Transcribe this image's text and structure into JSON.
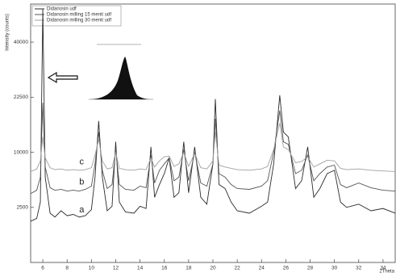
{
  "chart_data": {
    "type": "line",
    "x_label": "2Theta",
    "y_label": "Intensity (counts)",
    "y_scale": "sqrt",
    "xlim": [
      5,
      35
    ],
    "ylim": [
      0,
      55000
    ],
    "xticks": [
      6,
      8,
      10,
      12,
      14,
      16,
      18,
      20,
      22,
      24,
      26,
      28,
      30,
      32,
      34
    ],
    "yticks": [
      2500,
      10000,
      22500,
      40000
    ],
    "legend": "upper-left",
    "x": [
      5,
      5.5,
      5.8,
      6,
      6.2,
      6.6,
      7,
      7.5,
      8,
      8.5,
      9,
      9.5,
      10,
      10.3,
      10.6,
      10.9,
      11.3,
      11.7,
      12,
      12.3,
      12.8,
      13.5,
      14,
      14.5,
      14.9,
      15.2,
      15.6,
      16,
      16.4,
      16.8,
      17.2,
      17.6,
      18,
      18.5,
      19,
      19.5,
      20,
      20.2,
      20.5,
      21,
      21.5,
      22,
      23,
      24,
      24.5,
      25,
      25.5,
      25.8,
      26.2,
      26.8,
      27.3,
      27.8,
      28.3,
      28.8,
      29.4,
      30,
      30.5,
      31,
      32,
      33,
      34,
      35
    ],
    "series": [
      {
        "name": "Didanosin udf",
        "color": "#2b2b2b",
        "values": [
          1400,
          1600,
          3000,
          53000,
          6000,
          2000,
          1700,
          2200,
          1800,
          1900,
          1700,
          1800,
          2300,
          6000,
          16500,
          6000,
          2200,
          2600,
          12000,
          3000,
          2100,
          2000,
          2600,
          2400,
          11000,
          3500,
          5000,
          6500,
          9000,
          3500,
          4000,
          12000,
          4000,
          11000,
          3500,
          2800,
          8000,
          22000,
          5000,
          4500,
          3000,
          2200,
          2000,
          2600,
          3000,
          8000,
          23000,
          14000,
          13000,
          4500,
          5500,
          11000,
          3500,
          4500,
          6500,
          7000,
          3000,
          2500,
          2800,
          2200,
          2400,
          2000
        ]
      },
      {
        "name": "Didanosin milling 15 menit udf",
        "color": "#555555",
        "values": [
          3900,
          4300,
          6000,
          21000,
          7500,
          4600,
          4300,
          4400,
          4200,
          4300,
          4200,
          4400,
          4800,
          8000,
          14000,
          7000,
          4500,
          5000,
          10500,
          5000,
          4400,
          4300,
          4800,
          4600,
          9500,
          5200,
          7000,
          8000,
          9000,
          5500,
          6000,
          10500,
          5500,
          10000,
          5200,
          4800,
          8000,
          17000,
          6500,
          6000,
          5000,
          4500,
          4400,
          4800,
          5500,
          10000,
          19000,
          12000,
          11500,
          6500,
          7000,
          9500,
          5500,
          6500,
          7500,
          7800,
          5000,
          4600,
          5200,
          4600,
          4300,
          4200
        ]
      },
      {
        "name": "Didanosin milling 30 menit udf",
        "color": "#a0a0a0",
        "values": [
          6800,
          7200,
          8500,
          13000,
          9000,
          7400,
          7100,
          7200,
          7000,
          7100,
          7000,
          7100,
          7400,
          9500,
          12500,
          8500,
          7200,
          7400,
          10000,
          7300,
          7100,
          7000,
          7200,
          7100,
          9000,
          7500,
          8500,
          9200,
          9300,
          7600,
          8000,
          10000,
          7600,
          9800,
          7400,
          7200,
          8500,
          14000,
          7800,
          7500,
          7300,
          7100,
          7000,
          7200,
          7600,
          10500,
          16000,
          11000,
          10500,
          8200,
          8400,
          9200,
          7500,
          8000,
          8600,
          8500,
          7300,
          7100,
          7200,
          7000,
          6900,
          6800
        ]
      }
    ],
    "annotations": [
      {
        "text": "a",
        "x": 9.2,
        "y": 1750
      },
      {
        "text": "b",
        "x": 9.2,
        "y": 4500
      },
      {
        "text": "c",
        "x": 9.2,
        "y": 7300
      }
    ]
  }
}
